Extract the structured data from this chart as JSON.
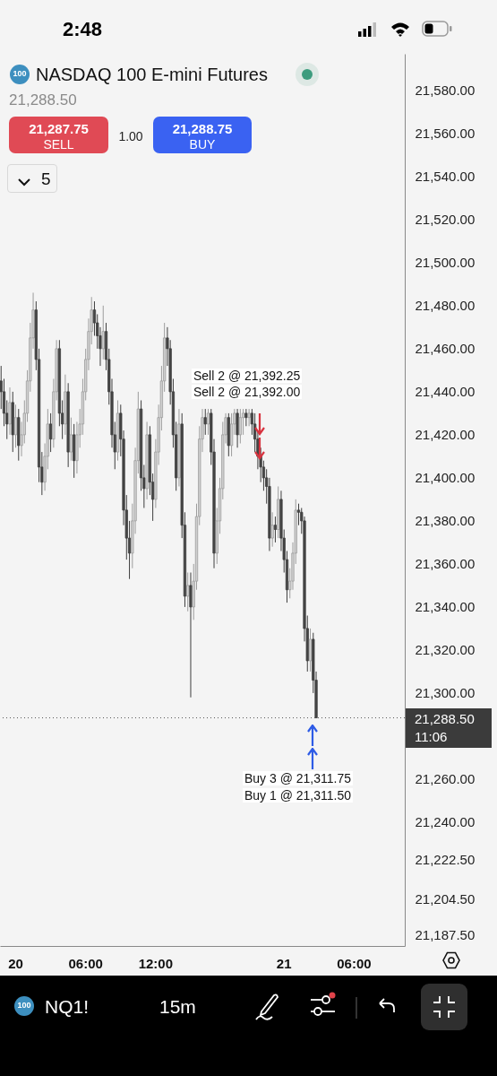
{
  "chart_data": {
    "type": "candlestick",
    "title": "NASDAQ 100 E-mini Futures",
    "subtitle": "21,288.50",
    "categories": [
      null,
      null,
      null,
      null,
      null,
      "20",
      null,
      null,
      null,
      null,
      null,
      null,
      null,
      null,
      null,
      null,
      null,
      null,
      null,
      null,
      null,
      null,
      null,
      null,
      null,
      null,
      null,
      null,
      null,
      "06:00",
      null,
      null,
      null,
      null,
      null,
      null,
      null,
      null,
      null,
      null,
      null,
      null,
      null,
      null,
      null,
      null,
      null,
      null,
      null,
      null,
      null,
      null,
      null,
      "12:00",
      null,
      null,
      null,
      null,
      null,
      null,
      null,
      null,
      null,
      null,
      null,
      null,
      null,
      null,
      null,
      null,
      null,
      null,
      null,
      null,
      null,
      null,
      null,
      null,
      null,
      null,
      null,
      null,
      null,
      null,
      null,
      null,
      null,
      null,
      null,
      null,
      null,
      null,
      null,
      null,
      null,
      null,
      null,
      "21",
      null,
      null,
      null,
      null,
      null,
      null,
      null,
      null,
      null,
      null,
      null,
      null,
      null,
      null,
      null,
      null,
      null,
      null,
      null,
      null,
      null,
      null,
      null,
      "06:00",
      null,
      null,
      null,
      null,
      null,
      null,
      null,
      null,
      null,
      null,
      null,
      null,
      null,
      null,
      null,
      null,
      null
    ],
    "ohlc": [
      [
        21445,
        21452,
        21432,
        21440
      ],
      [
        21440,
        21446,
        21424,
        21430
      ],
      [
        21430,
        21436,
        21418,
        21425
      ],
      [
        21425,
        21442,
        21420,
        21435
      ],
      [
        21435,
        21440,
        21412,
        21420
      ],
      [
        21420,
        21434,
        21414,
        21428
      ],
      [
        21428,
        21432,
        21408,
        21415
      ],
      [
        21415,
        21426,
        21410,
        21420
      ],
      [
        21420,
        21436,
        21416,
        21430
      ],
      [
        21430,
        21450,
        21426,
        21445
      ],
      [
        21445,
        21472,
        21440,
        21465
      ],
      [
        21465,
        21486,
        21460,
        21478
      ],
      [
        21478,
        21482,
        21450,
        21455
      ],
      [
        21455,
        21460,
        21398,
        21405
      ],
      [
        21405,
        21412,
        21392,
        21398
      ],
      [
        21398,
        21416,
        21394,
        21410
      ],
      [
        21410,
        21432,
        21404,
        21425
      ],
      [
        21425,
        21430,
        21412,
        21418
      ],
      [
        21418,
        21446,
        21414,
        21440
      ],
      [
        21440,
        21464,
        21436,
        21460
      ],
      [
        21460,
        21464,
        21424,
        21430
      ],
      [
        21430,
        21436,
        21418,
        21425
      ],
      [
        21425,
        21448,
        21420,
        21440
      ],
      [
        21440,
        21444,
        21405,
        21412
      ],
      [
        21412,
        21428,
        21408,
        21420
      ],
      [
        21420,
        21425,
        21400,
        21408
      ],
      [
        21408,
        21426,
        21402,
        21420
      ],
      [
        21420,
        21432,
        21414,
        21425
      ],
      [
        21425,
        21446,
        21420,
        21440
      ],
      [
        21440,
        21460,
        21436,
        21455
      ],
      [
        21455,
        21474,
        21450,
        21468
      ],
      [
        21468,
        21484,
        21462,
        21478
      ],
      [
        21478,
        21482,
        21466,
        21472
      ],
      [
        21472,
        21476,
        21460,
        21466
      ],
      [
        21466,
        21470,
        21452,
        21460
      ],
      [
        21460,
        21480,
        21455,
        21468
      ],
      [
        21468,
        21472,
        21450,
        21455
      ],
      [
        21455,
        21460,
        21434,
        21440
      ],
      [
        21440,
        21446,
        21414,
        21420
      ],
      [
        21420,
        21426,
        21404,
        21412
      ],
      [
        21412,
        21436,
        21408,
        21430
      ],
      [
        21430,
        21434,
        21410,
        21418
      ],
      [
        21418,
        21422,
        21378,
        21385
      ],
      [
        21385,
        21392,
        21362,
        21372
      ],
      [
        21372,
        21380,
        21353,
        21365
      ],
      [
        21365,
        21388,
        21358,
        21380
      ],
      [
        21380,
        21414,
        21374,
        21408
      ],
      [
        21408,
        21440,
        21402,
        21432
      ],
      [
        21432,
        21436,
        21394,
        21400
      ],
      [
        21400,
        21406,
        21386,
        21395
      ],
      [
        21395,
        21426,
        21390,
        21420
      ],
      [
        21420,
        21424,
        21392,
        21398
      ],
      [
        21398,
        21402,
        21380,
        21390
      ],
      [
        21390,
        21418,
        21386,
        21412
      ],
      [
        21412,
        21434,
        21406,
        21428
      ],
      [
        21428,
        21452,
        21422,
        21445
      ],
      [
        21445,
        21472,
        21440,
        21465
      ],
      [
        21465,
        21470,
        21452,
        21460
      ],
      [
        21460,
        21464,
        21434,
        21440
      ],
      [
        21440,
        21446,
        21414,
        21420
      ],
      [
        21420,
        21426,
        21394,
        21400
      ],
      [
        21400,
        21432,
        21396,
        21425
      ],
      [
        21425,
        21430,
        21372,
        21378
      ],
      [
        21378,
        21384,
        21340,
        21345
      ],
      [
        21345,
        21356,
        21338,
        21350
      ],
      [
        21350,
        21356,
        21298,
        21340
      ],
      [
        21340,
        21360,
        21334,
        21352
      ],
      [
        21352,
        21388,
        21348,
        21382
      ],
      [
        21382,
        21424,
        21378,
        21418
      ],
      [
        21418,
        21432,
        21412,
        21428
      ],
      [
        21428,
        21432,
        21420,
        21425
      ],
      [
        21425,
        21432,
        21420,
        21430
      ],
      [
        21430,
        21432,
        21406,
        21412
      ],
      [
        21412,
        21418,
        21358,
        21365
      ],
      [
        21365,
        21386,
        21360,
        21380
      ],
      [
        21380,
        21400,
        21374,
        21395
      ],
      [
        21395,
        21426,
        21390,
        21420
      ],
      [
        21420,
        21430,
        21416,
        21428
      ],
      [
        21428,
        21430,
        21410,
        21415
      ],
      [
        21415,
        21430,
        21410,
        21425
      ],
      [
        21425,
        21432,
        21420,
        21430
      ],
      [
        21430,
        21432,
        21414,
        21420
      ],
      [
        21420,
        21432,
        21416,
        21428
      ],
      [
        21428,
        21432,
        21420,
        21430
      ],
      [
        21430,
        21432,
        21424,
        21428
      ],
      [
        21428,
        21432,
        21424,
        21430
      ],
      [
        21430,
        21432,
        21420,
        21425
      ],
      [
        21425,
        21430,
        21412,
        21418
      ],
      [
        21418,
        21422,
        21404,
        21410
      ],
      [
        21410,
        21414,
        21398,
        21405
      ],
      [
        21405,
        21408,
        21394,
        21400
      ],
      [
        21400,
        21404,
        21388,
        21396
      ],
      [
        21396,
        21400,
        21366,
        21372
      ],
      [
        21372,
        21384,
        21368,
        21378
      ],
      [
        21378,
        21382,
        21370,
        21376
      ],
      [
        21376,
        21396,
        21372,
        21390
      ],
      [
        21390,
        21394,
        21366,
        21372
      ],
      [
        21372,
        21376,
        21356,
        21362
      ],
      [
        21362,
        21366,
        21342,
        21348
      ],
      [
        21348,
        21358,
        21344,
        21352
      ],
      [
        21352,
        21370,
        21348,
        21365
      ],
      [
        21365,
        21390,
        21360,
        21385
      ],
      [
        21385,
        21388,
        21378,
        21384
      ],
      [
        21384,
        21386,
        21374,
        21380
      ],
      [
        21380,
        21382,
        21324,
        21330
      ],
      [
        21330,
        21336,
        21310,
        21315
      ],
      [
        21315,
        21330,
        21310,
        21325
      ],
      [
        21325,
        21328,
        21300,
        21306
      ],
      [
        21306,
        21310,
        21288.5,
        21288.5
      ],
      null,
      null,
      null,
      null,
      null,
      null,
      null,
      null,
      null,
      null,
      null,
      null,
      null,
      null,
      null,
      null,
      null,
      null,
      null,
      null,
      null,
      null,
      null,
      null,
      null,
      null,
      null,
      null,
      null,
      null
    ],
    "ylim": [
      21182.5,
      21597
    ],
    "yticks": [
      {
        "value": 21187.5,
        "label": "21,187.50"
      },
      {
        "value": 21204.5,
        "label": "21,204.50"
      },
      {
        "value": 21222.5,
        "label": "21,222.50"
      },
      {
        "value": 21240,
        "label": "21,240.00"
      },
      {
        "value": 21260,
        "label": "21,260.00"
      },
      {
        "value": 21300,
        "label": "21,300.00"
      },
      {
        "value": 21320,
        "label": "21,320.00"
      },
      {
        "value": 21340,
        "label": "21,340.00"
      },
      {
        "value": 21360,
        "label": "21,360.00"
      },
      {
        "value": 21380,
        "label": "21,380.00"
      },
      {
        "value": 21400,
        "label": "21,400.00"
      },
      {
        "value": 21420,
        "label": "21,420.00"
      },
      {
        "value": 21440,
        "label": "21,440.00"
      },
      {
        "value": 21460,
        "label": "21,460.00"
      },
      {
        "value": 21480,
        "label": "21,480.00"
      },
      {
        "value": 21500,
        "label": "21,500.00"
      },
      {
        "value": 21520,
        "label": "21,520.00"
      },
      {
        "value": 21540,
        "label": "21,540.00"
      },
      {
        "value": 21560,
        "label": "21,560.00"
      },
      {
        "value": 21580,
        "label": "21,580.00"
      }
    ],
    "ref_lines": [
      {
        "axis": "y",
        "value": 21288.5,
        "label": "21,288.50",
        "line_style": "dotted",
        "color": "#555555"
      }
    ],
    "annotations": [
      "Sell 2 @ 21,392.25",
      "Sell 2 @ 21,392.00",
      "Buy 3 @ 21,311.75",
      "Buy 1 @ 21,311.50",
      "2:48",
      "100",
      "21,287.75",
      "SELL",
      "1.00",
      "21,288.75",
      "BUY",
      "5",
      "11:06",
      "NQ1!",
      "15m",
      "100"
    ]
  }
}
